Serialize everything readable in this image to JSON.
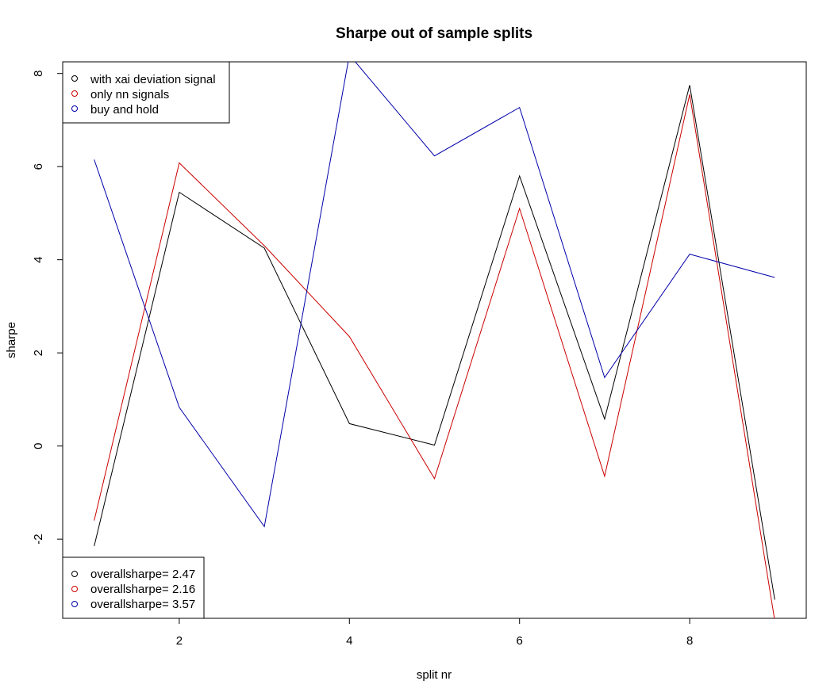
{
  "chart_data": {
    "type": "line",
    "title": "Sharpe out of sample splits",
    "xlabel": "split nr",
    "ylabel": "sharpe",
    "x": [
      1,
      2,
      3,
      4,
      5,
      6,
      7,
      8,
      9
    ],
    "xlim": [
      0.63,
      9.37
    ],
    "ylim": [
      -3.7,
      8.25
    ],
    "xticks": [
      2,
      4,
      6,
      8
    ],
    "yticks": [
      -2,
      0,
      2,
      4,
      6,
      8
    ],
    "grid": false,
    "series": [
      {
        "name": "with xai deviation signal",
        "color": "#000000",
        "values": [
          -2.15,
          5.45,
          4.25,
          0.48,
          0.02,
          5.8,
          0.58,
          7.75,
          -3.3
        ]
      },
      {
        "name": "only nn signals",
        "color": "#cc0000",
        "values": [
          -1.6,
          6.08,
          4.3,
          2.35,
          -0.7,
          5.1,
          -0.65,
          7.55,
          -3.75
        ]
      },
      {
        "name": "buy and hold",
        "color": "#0000aa",
        "values": [
          6.15,
          0.83,
          -1.73,
          8.4,
          6.23,
          7.27,
          1.47,
          4.12,
          3.62
        ]
      }
    ],
    "legends": [
      {
        "position": "top-left",
        "entries": [
          {
            "label": "with xai deviation signal",
            "color": "#000000"
          },
          {
            "label": "only nn signals",
            "color": "#cc0000"
          },
          {
            "label": "buy and hold",
            "color": "#0000aa"
          }
        ]
      },
      {
        "position": "bottom-left",
        "entries": [
          {
            "label": "overallsharpe= 2.47",
            "color": "#000000"
          },
          {
            "label": "overallsharpe= 2.16",
            "color": "#cc0000"
          },
          {
            "label": "overallsharpe= 3.57",
            "color": "#0000aa"
          }
        ]
      }
    ]
  }
}
